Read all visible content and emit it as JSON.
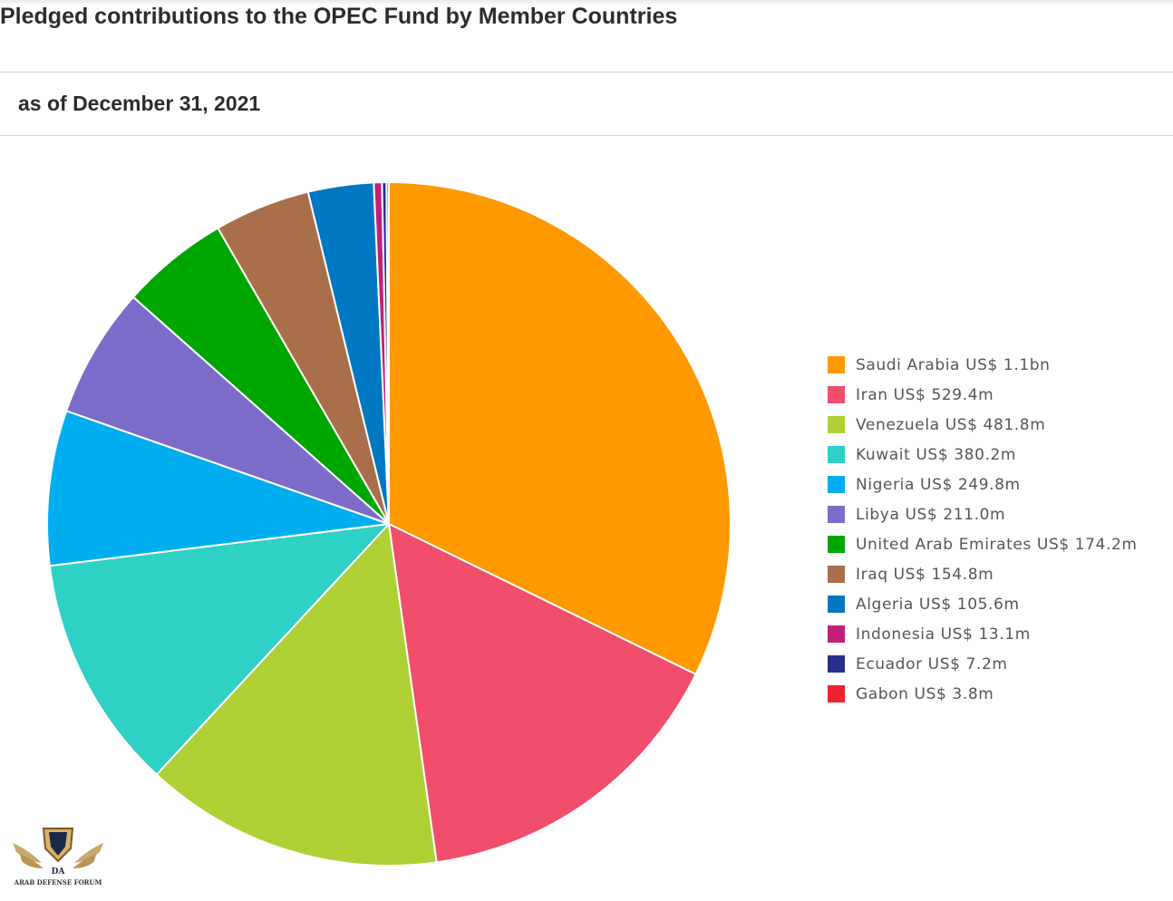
{
  "header": {
    "title": "Pledged contributions to the OPEC Fund by Member Countries",
    "subtitle": "as of December 31, 2021"
  },
  "chart_data": {
    "type": "pie",
    "title": "Pledged contributions to the OPEC Fund by Member Countries",
    "subtitle": "as of December 31, 2021",
    "unit": "US$ millions",
    "start_angle_deg": 0,
    "direction": "clockwise",
    "legend_position": "right",
    "slices": [
      {
        "name": "Saudi Arabia",
        "value": 1100,
        "label": "Saudi Arabia US$ 1.1bn",
        "color": "#FF9900"
      },
      {
        "name": "Iran",
        "value": 529.4,
        "label": "Iran US$ 529.4m",
        "color": "#F04E6A"
      },
      {
        "name": "Venezuela",
        "value": 481.8,
        "label": "Venezuela US$ 481.8m",
        "color": "#B0D136"
      },
      {
        "name": "Kuwait",
        "value": 380.2,
        "label": "Kuwait US$ 380.2m",
        "color": "#2ED1C4"
      },
      {
        "name": "Nigeria",
        "value": 249.8,
        "label": "Nigeria US$ 249.8m",
        "color": "#00AEEF"
      },
      {
        "name": "Libya",
        "value": 211.0,
        "label": "Libya US$ 211.0m",
        "color": "#7C6BC9"
      },
      {
        "name": "United Arab Emirates",
        "value": 174.2,
        "label": "United Arab Emirates US$ 174.2m",
        "color": "#00A600"
      },
      {
        "name": "Iraq",
        "value": 154.8,
        "label": "Iraq US$ 154.8m",
        "color": "#A86F4A"
      },
      {
        "name": "Algeria",
        "value": 105.6,
        "label": "Algeria US$ 105.6m",
        "color": "#0077C2"
      },
      {
        "name": "Indonesia",
        "value": 13.1,
        "label": "Indonesia US$ 13.1m",
        "color": "#C21F7A"
      },
      {
        "name": "Ecuador",
        "value": 7.2,
        "label": "Ecuador US$ 7.2m",
        "color": "#2A2E8C"
      },
      {
        "name": "Gabon",
        "value": 3.8,
        "label": "Gabon US$ 3.8m",
        "color": "#EE2230"
      }
    ]
  },
  "watermark": {
    "logo_icon": "winged-shield-logo-icon",
    "caption": "ARAB DEFENSE FORUM"
  }
}
